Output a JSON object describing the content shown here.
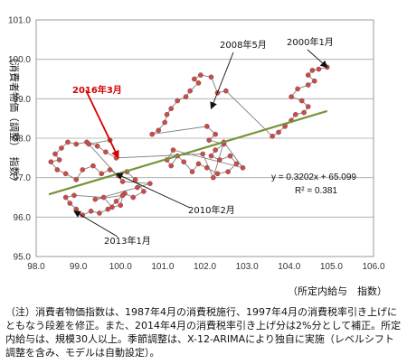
{
  "chart_data": {
    "type": "scatter",
    "xlabel": "（所定内給与　指数）",
    "ylabel": "（消費者物価（調整）　指数）",
    "xlim": [
      98.0,
      106.0
    ],
    "ylim": [
      95.0,
      101.0
    ],
    "xticks": [
      "98.0",
      "99.0",
      "100.0",
      "101.0",
      "102.0",
      "103.0",
      "104.0",
      "105.0",
      "106.0"
    ],
    "yticks": [
      "95.0",
      "96.0",
      "97.0",
      "98.0",
      "99.0",
      "100.0",
      "101.0"
    ],
    "grid": "horizontal",
    "series": [
      {
        "points": [
          [
            104.9,
            99.8
          ],
          [
            104.7,
            99.75
          ],
          [
            104.55,
            99.72
          ],
          [
            104.45,
            99.6
          ],
          [
            104.6,
            99.45
          ],
          [
            104.45,
            99.35
          ],
          [
            104.2,
            99.25
          ],
          [
            104.05,
            99.05
          ],
          [
            104.3,
            98.95
          ],
          [
            104.45,
            98.8
          ],
          [
            104.35,
            98.65
          ],
          [
            104.15,
            98.6
          ],
          [
            104.05,
            98.45
          ],
          [
            103.9,
            98.3
          ],
          [
            103.75,
            98.15
          ],
          [
            103.6,
            98.05
          ],
          [
            102.5,
            99.2
          ],
          [
            102.3,
            99.15
          ],
          [
            102.15,
            99.55
          ],
          [
            101.9,
            99.6
          ],
          [
            101.75,
            99.5
          ],
          [
            101.85,
            99.4
          ],
          [
            101.65,
            99.2
          ],
          [
            101.55,
            99.05
          ],
          [
            101.35,
            98.95
          ],
          [
            101.2,
            98.75
          ],
          [
            101.1,
            98.6
          ],
          [
            101.05,
            98.4
          ],
          [
            100.9,
            98.2
          ],
          [
            100.75,
            98.1
          ],
          [
            102.05,
            98.3
          ],
          [
            102.25,
            98.1
          ],
          [
            102.1,
            97.95
          ],
          [
            102.45,
            97.85
          ],
          [
            102.25,
            97.7
          ],
          [
            102.15,
            97.55
          ],
          [
            102.35,
            97.45
          ],
          [
            102.6,
            97.55
          ],
          [
            102.75,
            97.35
          ],
          [
            102.55,
            97.15
          ],
          [
            102.3,
            97.1
          ],
          [
            102.05,
            97.25
          ],
          [
            101.85,
            97.35
          ],
          [
            101.7,
            97.15
          ],
          [
            101.5,
            97.4
          ],
          [
            101.35,
            97.55
          ],
          [
            101.2,
            97.3
          ],
          [
            101.1,
            97.45
          ],
          [
            101.25,
            97.7
          ],
          [
            102.9,
            97.25
          ],
          [
            102.45,
            97.9
          ],
          [
            102.2,
            97.0
          ],
          [
            101.95,
            97.6
          ],
          [
            99.9,
            97.5
          ],
          [
            99.65,
            97.65
          ],
          [
            99.45,
            97.8
          ],
          [
            99.2,
            97.9
          ],
          [
            98.95,
            97.85
          ],
          [
            98.75,
            97.9
          ],
          [
            98.6,
            97.75
          ],
          [
            98.45,
            97.6
          ],
          [
            98.55,
            97.45
          ],
          [
            98.35,
            97.4
          ],
          [
            98.5,
            97.2
          ],
          [
            98.7,
            97.1
          ],
          [
            98.95,
            96.95
          ],
          [
            99.1,
            97.2
          ],
          [
            99.35,
            97.3
          ],
          [
            99.55,
            97.1
          ],
          [
            99.75,
            97.2
          ],
          [
            99.95,
            97.05
          ],
          [
            100.15,
            97.15
          ],
          [
            100.35,
            96.95
          ],
          [
            100.55,
            96.65
          ],
          [
            100.3,
            96.5
          ],
          [
            100.1,
            96.6
          ],
          [
            99.9,
            96.4
          ],
          [
            99.7,
            96.2
          ],
          [
            99.5,
            96.1
          ],
          [
            99.3,
            96.15
          ],
          [
            99.1,
            96.05
          ],
          [
            98.95,
            96.2
          ],
          [
            98.8,
            96.35
          ],
          [
            98.7,
            96.5
          ],
          [
            98.9,
            96.55
          ],
          [
            99.6,
            96.5
          ],
          [
            99.8,
            96.25
          ],
          [
            100.0,
            96.3
          ],
          [
            100.05,
            96.55
          ],
          [
            99.4,
            96.45
          ],
          [
            100.4,
            96.75
          ],
          [
            100.7,
            96.85
          ],
          [
            100.05,
            96.9
          ],
          [
            99.25,
            97.85
          ],
          [
            99.75,
            97.95
          ]
        ],
        "connect": true
      }
    ],
    "trendline": {
      "slope": 0.3202,
      "intercept": 65.099,
      "x_range": [
        98.3,
        104.9
      ]
    },
    "equation": "y = 0.3202x + 65.099",
    "r_squared": "R² = 0.381",
    "annotations": [
      {
        "text": "2016年3月",
        "style": "red",
        "target": [
          99.95,
          97.5
        ]
      },
      {
        "text": "2008年5月",
        "target": [
          102.15,
          98.75
        ]
      },
      {
        "text": "2000年1月",
        "target": [
          104.9,
          99.8
        ]
      },
      {
        "text": "2010年2月",
        "target": [
          99.9,
          97.1
        ]
      },
      {
        "text": "2013年1月",
        "target": [
          98.9,
          96.15
        ]
      }
    ],
    "colors": {
      "marker": "#c0504d",
      "marker_edge": "#a0403d",
      "line": "#7f7f7f",
      "trend": "#77933c",
      "highlight": "#d40000"
    }
  },
  "note": "（注）消費者物価指数は、1987年4月の消費税施行、1997年4月の消費税率引き上げにともなう段差を修正。また、2014年4月の消費税率引き上げ分は2%分として補正。所定内給与は、規模30人以上。季節調整は、X-12-ARIMAにより独自に実施（レベルシフト調整を含み、モデルは自動設定）。"
}
